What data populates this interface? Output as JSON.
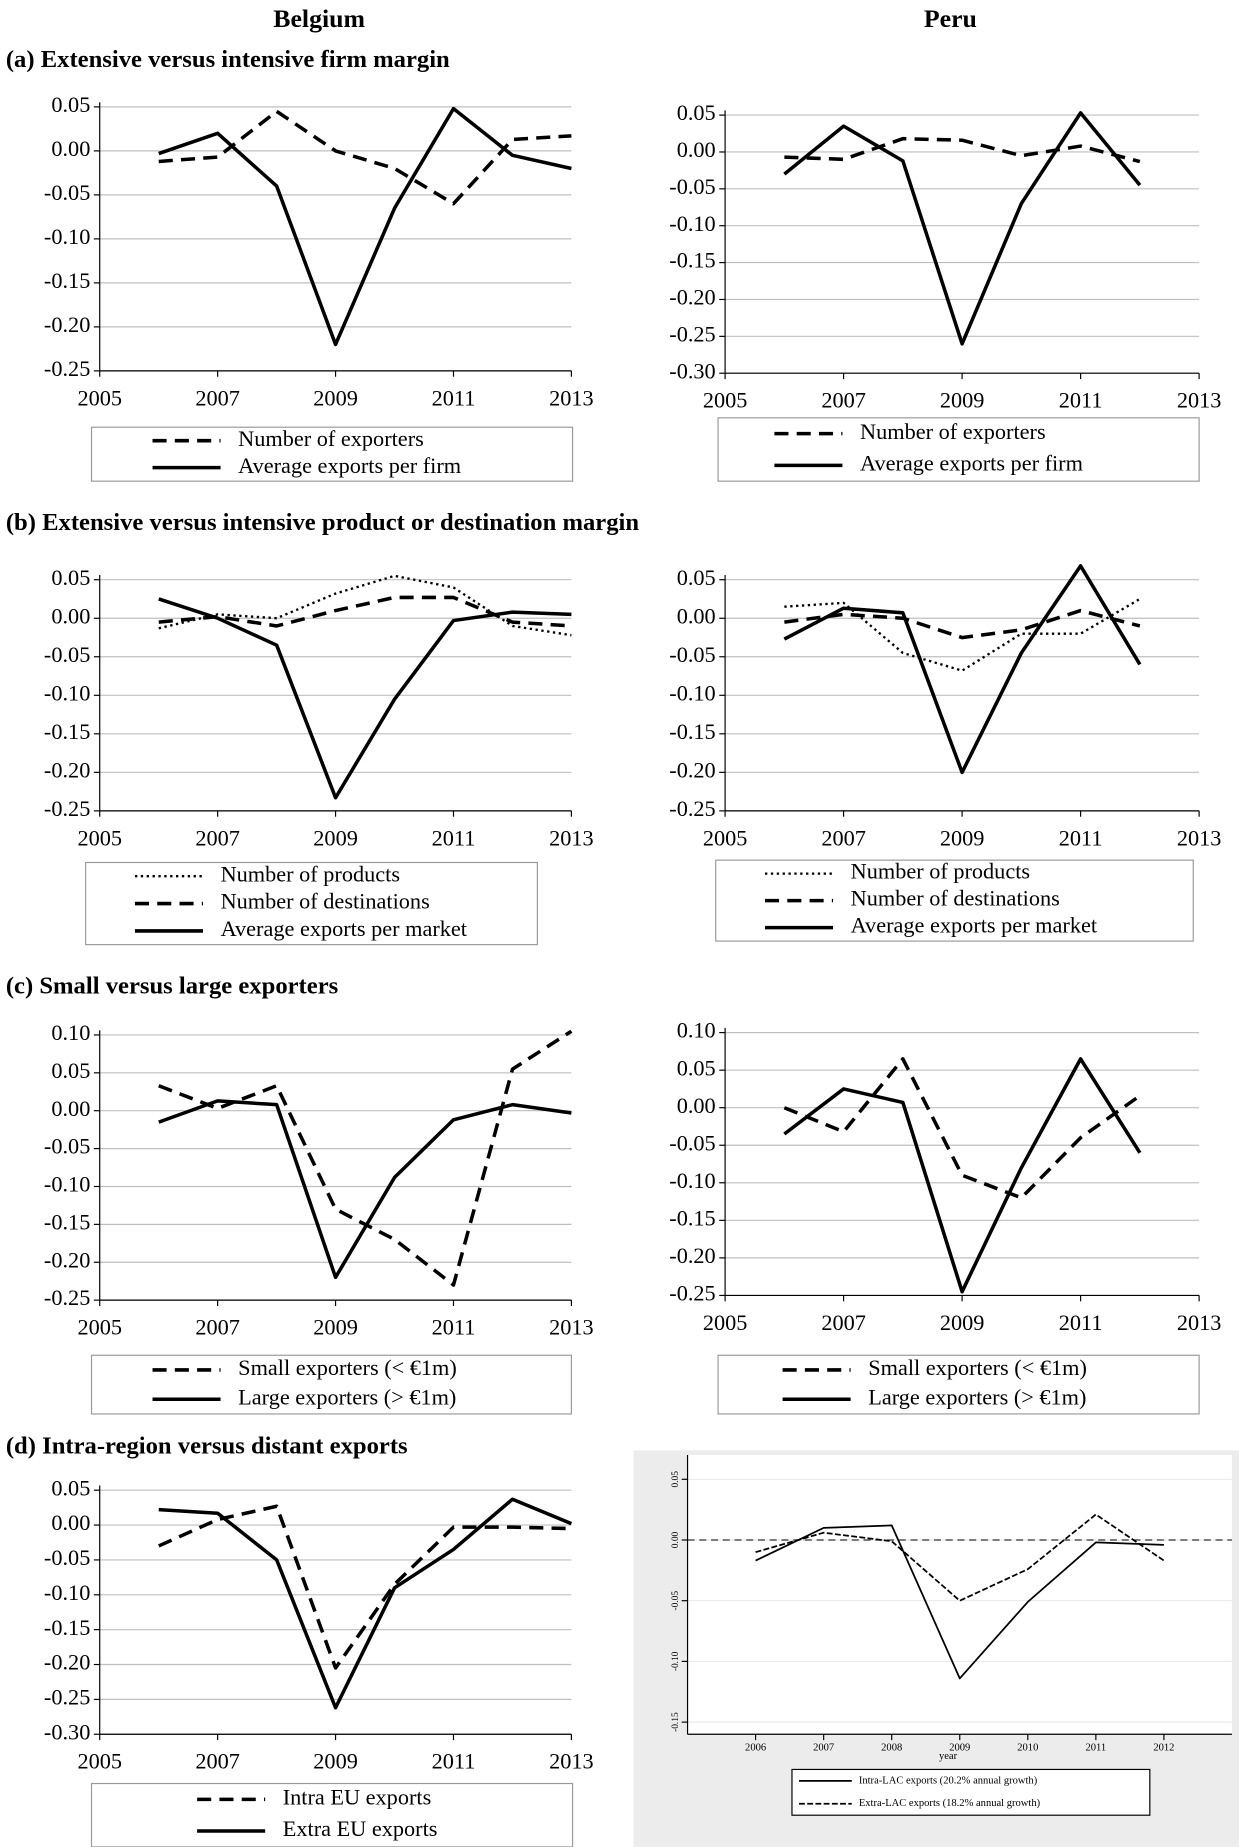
{
  "columns": [
    "Belgium",
    "Peru"
  ],
  "sections": [
    "(a) Extensive versus intensive firm margin",
    "(b) Extensive versus intensive product or destination margin",
    "(c) Small versus large exporters",
    "(d) Intra-region versus distant exports"
  ],
  "chart_data": [
    {
      "type": "line",
      "x": [
        2006,
        2007,
        2008,
        2009,
        2010,
        2011,
        2012,
        2013
      ],
      "xlim": [
        2005,
        2013
      ],
      "xticks": [
        2005,
        2007,
        2009,
        2011,
        2013
      ],
      "ylim": [
        -0.25,
        0.05
      ],
      "yticks": [
        {
          "value": 0.05,
          "label": "0.05"
        },
        {
          "value": 0,
          "label": "0.00"
        },
        {
          "value": -0.05,
          "label": "-0.05"
        },
        {
          "value": -0.1,
          "label": "-0.10"
        },
        {
          "value": -0.15,
          "label": "-0.15"
        },
        {
          "value": -0.2,
          "label": "-0.20"
        },
        {
          "value": -0.25,
          "label": "-0.25"
        }
      ],
      "grid": true,
      "series": [
        {
          "name": "Number of exporters",
          "color": "#000000",
          "style": "dashed",
          "values": [
            -0.012,
            -0.007,
            0.045,
            0.0,
            -0.02,
            -0.06,
            0.013,
            0.017
          ]
        },
        {
          "name": "Average exports per firm",
          "color": "#000000",
          "style": "solid",
          "values": [
            -0.003,
            0.02,
            -0.04,
            -0.22,
            -0.065,
            0.048,
            -0.005,
            -0.02
          ]
        }
      ]
    },
    {
      "type": "line",
      "x": [
        2006,
        2007,
        2008,
        2009,
        2010,
        2011,
        2012
      ],
      "xlim": [
        2005,
        2013
      ],
      "xticks": [
        2005,
        2007,
        2009,
        2011,
        2013
      ],
      "ylim": [
        -0.3,
        0.05
      ],
      "yticks": [
        {
          "value": 0.05,
          "label": "0.05"
        },
        {
          "value": 0,
          "label": "0.00"
        },
        {
          "value": -0.05,
          "label": "-0.05"
        },
        {
          "value": -0.1,
          "label": "-0.10"
        },
        {
          "value": -0.15,
          "label": "-0.15"
        },
        {
          "value": -0.2,
          "label": "-0.20"
        },
        {
          "value": -0.25,
          "label": "-0.25"
        },
        {
          "value": -0.3,
          "label": "-0.30"
        }
      ],
      "grid": true,
      "series": [
        {
          "name": "Number of exporters",
          "color": "#000000",
          "style": "dashed",
          "values": [
            -0.007,
            -0.01,
            0.018,
            0.016,
            -0.005,
            0.008,
            -0.013
          ]
        },
        {
          "name": "Average exports per firm",
          "color": "#000000",
          "style": "solid",
          "values": [
            -0.03,
            0.035,
            -0.012,
            -0.26,
            -0.07,
            0.053,
            -0.045
          ]
        }
      ]
    },
    {
      "type": "line",
      "x": [
        2006,
        2007,
        2008,
        2009,
        2010,
        2011,
        2012,
        2013
      ],
      "xlim": [
        2005,
        2013
      ],
      "xticks": [
        2005,
        2007,
        2009,
        2011,
        2013
      ],
      "ylim": [
        -0.25,
        0.05
      ],
      "yticks": [
        {
          "value": 0.05,
          "label": "0.05"
        },
        {
          "value": 0,
          "label": "0.00"
        },
        {
          "value": -0.05,
          "label": "-0.05"
        },
        {
          "value": -0.1,
          "label": "-0.10"
        },
        {
          "value": -0.15,
          "label": "-0.15"
        },
        {
          "value": -0.2,
          "label": "-0.20"
        },
        {
          "value": -0.25,
          "label": "-0.25"
        }
      ],
      "grid": true,
      "series": [
        {
          "name": "Number of products",
          "color": "#000000",
          "style": "dotted",
          "values": [
            -0.013,
            0.005,
            0.0,
            0.032,
            0.055,
            0.04,
            -0.01,
            -0.022
          ]
        },
        {
          "name": "Number of destinations",
          "color": "#000000",
          "style": "dashed",
          "values": [
            -0.005,
            0.002,
            -0.01,
            0.01,
            0.027,
            0.027,
            -0.005,
            -0.01
          ]
        },
        {
          "name": "Average exports per market",
          "color": "#000000",
          "style": "solid",
          "values": [
            0.025,
            0.0,
            -0.035,
            -0.233,
            -0.105,
            -0.003,
            0.008,
            0.005
          ]
        }
      ]
    },
    {
      "type": "line",
      "x": [
        2006,
        2007,
        2008,
        2009,
        2010,
        2011,
        2012
      ],
      "xlim": [
        2005,
        2013
      ],
      "xticks": [
        2005,
        2007,
        2009,
        2011,
        2013
      ],
      "ylim": [
        -0.25,
        0.05
      ],
      "yticks": [
        {
          "value": 0.05,
          "label": "0.05"
        },
        {
          "value": 0,
          "label": "0.00"
        },
        {
          "value": -0.05,
          "label": "-0.05"
        },
        {
          "value": -0.1,
          "label": "-0.10"
        },
        {
          "value": -0.15,
          "label": "-0.15"
        },
        {
          "value": -0.2,
          "label": "-0.20"
        },
        {
          "value": -0.25,
          "label": "-0.25"
        }
      ],
      "grid": true,
      "series": [
        {
          "name": "Number of products",
          "color": "#000000",
          "style": "dotted",
          "values": [
            0.015,
            0.02,
            -0.045,
            -0.068,
            -0.02,
            -0.02,
            0.025
          ]
        },
        {
          "name": "Number of destinations",
          "color": "#000000",
          "style": "dashed",
          "values": [
            -0.005,
            0.005,
            0.0,
            -0.025,
            -0.015,
            0.01,
            -0.01
          ]
        },
        {
          "name": "Average exports per market",
          "color": "#000000",
          "style": "solid",
          "values": [
            -0.027,
            0.013,
            0.007,
            -0.2,
            -0.045,
            0.068,
            -0.06
          ]
        }
      ]
    },
    {
      "type": "line",
      "x": [
        2006,
        2007,
        2008,
        2009,
        2010,
        2011,
        2012,
        2013
      ],
      "xlim": [
        2005,
        2013
      ],
      "xticks": [
        2005,
        2007,
        2009,
        2011,
        2013
      ],
      "ylim": [
        -0.25,
        0.1
      ],
      "yticks": [
        {
          "value": 0.1,
          "label": "0.10"
        },
        {
          "value": 0.05,
          "label": "0.05"
        },
        {
          "value": 0,
          "label": "0.00"
        },
        {
          "value": -0.05,
          "label": "-0.05"
        },
        {
          "value": -0.1,
          "label": "-0.10"
        },
        {
          "value": -0.15,
          "label": "-0.15"
        },
        {
          "value": -0.2,
          "label": "-0.20"
        },
        {
          "value": -0.25,
          "label": "-0.25"
        }
      ],
      "grid": true,
      "series": [
        {
          "name": "Small exporters (< €1m)",
          "color": "#000000",
          "style": "dashed",
          "values": [
            0.033,
            0.003,
            0.033,
            -0.13,
            -0.17,
            -0.23,
            0.055,
            0.105
          ]
        },
        {
          "name": "Large exporters  (> €1m)",
          "color": "#000000",
          "style": "solid",
          "values": [
            -0.015,
            0.013,
            0.008,
            -0.22,
            -0.088,
            -0.012,
            0.008,
            -0.003
          ]
        }
      ]
    },
    {
      "type": "line",
      "x": [
        2006,
        2007,
        2008,
        2009,
        2010,
        2011,
        2012
      ],
      "xlim": [
        2005,
        2013
      ],
      "xticks": [
        2005,
        2007,
        2009,
        2011,
        2013
      ],
      "ylim": [
        -0.25,
        0.1
      ],
      "yticks": [
        {
          "value": 0.1,
          "label": "0.10"
        },
        {
          "value": 0.05,
          "label": "0.05"
        },
        {
          "value": 0,
          "label": "0.00"
        },
        {
          "value": -0.05,
          "label": "-0.05"
        },
        {
          "value": -0.1,
          "label": "-0.10"
        },
        {
          "value": -0.15,
          "label": "-0.15"
        },
        {
          "value": -0.2,
          "label": "-0.20"
        },
        {
          "value": -0.25,
          "label": "-0.25"
        }
      ],
      "grid": true,
      "series": [
        {
          "name": "Small exporters (< €1m)",
          "color": "#000000",
          "style": "dashed",
          "values": [
            0.0,
            -0.032,
            0.065,
            -0.09,
            -0.12,
            -0.04,
            0.016
          ]
        },
        {
          "name": "Large exporters  (> €1m)",
          "color": "#000000",
          "style": "solid",
          "values": [
            -0.035,
            0.025,
            0.007,
            -0.245,
            -0.08,
            0.065,
            -0.06
          ]
        }
      ]
    },
    {
      "type": "line",
      "x": [
        2006,
        2007,
        2008,
        2009,
        2010,
        2011,
        2012,
        2013
      ],
      "xlim": [
        2005,
        2013
      ],
      "xticks": [
        2005,
        2007,
        2009,
        2011,
        2013
      ],
      "ylim": [
        -0.3,
        0.05
      ],
      "yticks": [
        {
          "value": 0.05,
          "label": "0.05"
        },
        {
          "value": 0,
          "label": "0.00"
        },
        {
          "value": -0.05,
          "label": "-0.05"
        },
        {
          "value": -0.1,
          "label": "-0.10"
        },
        {
          "value": -0.15,
          "label": "-0.15"
        },
        {
          "value": -0.2,
          "label": "-0.20"
        },
        {
          "value": -0.25,
          "label": "-0.25"
        },
        {
          "value": -0.3,
          "label": "-0.30"
        }
      ],
      "grid": true,
      "series": [
        {
          "name": "Intra EU exports",
          "color": "#000000",
          "style": "dashed",
          "values": [
            -0.03,
            0.008,
            0.027,
            -0.205,
            -0.085,
            -0.003,
            -0.003,
            -0.005
          ]
        },
        {
          "name": "Extra EU exports",
          "color": "#000000",
          "style": "solid",
          "values": [
            0.022,
            0.017,
            -0.05,
            -0.262,
            -0.09,
            -0.035,
            0.037,
            0.002
          ]
        }
      ]
    },
    {
      "type": "line",
      "x": [
        2006,
        2007,
        2008,
        2009,
        2010,
        2011,
        2012
      ],
      "xlim": [
        2005,
        2013
      ],
      "xticks": [
        2006,
        2007,
        2008,
        2009,
        2010,
        2011,
        2012
      ],
      "xlabel": "year",
      "ylim": [
        -0.16,
        0.07
      ],
      "yticks": [
        {
          "value": 0.05,
          "label": "0.05"
        },
        {
          "value": 0,
          "label": "0.00"
        },
        {
          "value": -0.05,
          "label": "-0.05"
        },
        {
          "value": -0.1,
          "label": "-0.10"
        },
        {
          "value": -0.15,
          "label": "-0.15"
        }
      ],
      "grid": true,
      "hline": 0,
      "background": "#ececec",
      "series": [
        {
          "name": "Intra-LAC exports (20.2% annual growth)",
          "color": "#000000",
          "style": "solid",
          "values": [
            -0.017,
            0.01,
            0.012,
            -0.114,
            -0.051,
            -0.002,
            -0.004
          ]
        },
        {
          "name": "Extra-LAC exports (18.2% annual growth)",
          "color": "#000000",
          "style": "dashed",
          "values": [
            -0.01,
            0.006,
            -0.001,
            -0.05,
            -0.024,
            0.021,
            -0.017
          ]
        }
      ]
    }
  ]
}
